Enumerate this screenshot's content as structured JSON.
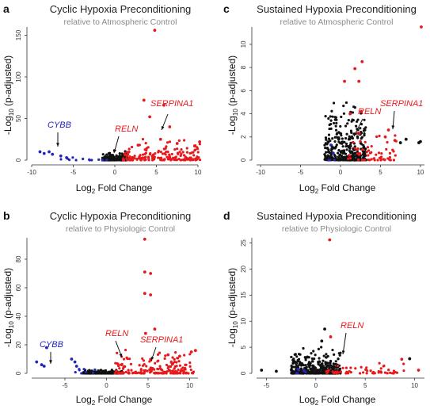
{
  "colors": {
    "up": "#e8191c",
    "down": "#2326b8",
    "ns": "#111111"
  },
  "chart_data": [
    {
      "panel": "a",
      "type": "scatter",
      "title": "Cyclic Hypoxia Preconditioning",
      "subtitle": "relative to Atmospheric Control",
      "xlabel": "Log2 Fold Change",
      "ylabel": "-Log10 (p-adjusted)",
      "xlim": [
        -10,
        10
      ],
      "ylim": [
        0,
        160
      ],
      "xticks": [
        -10,
        -5,
        0,
        5,
        10
      ],
      "yticks": [
        0,
        50,
        100,
        150
      ],
      "annotations": [
        {
          "text": "CYBB",
          "color": "down",
          "x": -7.8,
          "y": 7
        },
        {
          "text": "RELN",
          "color": "up",
          "x": 1.0,
          "y": 5
        },
        {
          "text": "SERPINA1",
          "color": "up",
          "x": 6.5,
          "y": 37
        }
      ],
      "highlight_points": [
        {
          "x": 4.8,
          "y": 156,
          "color": "up"
        },
        {
          "x": 3.5,
          "y": 72,
          "color": "up"
        },
        {
          "x": 5.9,
          "y": 66,
          "color": "up"
        },
        {
          "x": 4.2,
          "y": 52,
          "color": "up"
        },
        {
          "x": 6.6,
          "y": 40,
          "color": "up"
        },
        {
          "x": 10.2,
          "y": 22,
          "color": "up"
        },
        {
          "x": 9.6,
          "y": 17,
          "color": "up"
        },
        {
          "x": 2.8,
          "y": 18,
          "color": "up"
        },
        {
          "x": 5.5,
          "y": 25,
          "color": "up"
        },
        {
          "x": 7.5,
          "y": 20,
          "color": "up"
        },
        {
          "x": -7.9,
          "y": 10,
          "color": "down"
        },
        {
          "x": -7.5,
          "y": 7,
          "color": "down"
        },
        {
          "x": -9.0,
          "y": 10,
          "color": "down"
        },
        {
          "x": -8.5,
          "y": 8,
          "color": "down"
        },
        {
          "x": -6.5,
          "y": 5,
          "color": "down"
        },
        {
          "x": -5.8,
          "y": 3,
          "color": "down"
        }
      ],
      "cloud": {
        "ns_x": [
          -1.5,
          1.5
        ],
        "ns_ymax": 12,
        "up_x": [
          1.0,
          10.5
        ],
        "up_ymax": 30,
        "down_x": [
          -6.5,
          -0.8
        ],
        "down_ymax": 8,
        "n_ns": 220,
        "n_up": 170,
        "n_down": 12
      }
    },
    {
      "panel": "b",
      "type": "scatter",
      "title": "Cyclic Hypoxia Preconditioning",
      "subtitle": "relative to Physiologic Control",
      "xlabel": "Log2 Fold Change",
      "ylabel": "-Log10 (p-adjusted)",
      "xlim": [
        -9,
        11
      ],
      "ylim": [
        0,
        95
      ],
      "xticks": [
        -5,
        0,
        5,
        10
      ],
      "yticks": [
        0,
        20,
        40,
        60,
        80
      ],
      "annotations": [
        {
          "text": "CYBB",
          "color": "down",
          "x": -7.5,
          "y": 6
        },
        {
          "text": "RELN",
          "color": "up",
          "x": 1.6,
          "y": 6
        },
        {
          "text": "SERPINA1",
          "color": "up",
          "x": 5.6,
          "y": 8
        }
      ],
      "highlight_points": [
        {
          "x": 4.6,
          "y": 94,
          "color": "up"
        },
        {
          "x": 4.6,
          "y": 71,
          "color": "up"
        },
        {
          "x": 5.3,
          "y": 70,
          "color": "up"
        },
        {
          "x": 4.6,
          "y": 56,
          "color": "up"
        },
        {
          "x": 5.3,
          "y": 55,
          "color": "up"
        },
        {
          "x": 5.8,
          "y": 31,
          "color": "up"
        },
        {
          "x": 4.7,
          "y": 28,
          "color": "up"
        },
        {
          "x": 10.7,
          "y": 16,
          "color": "up"
        },
        {
          "x": 10.2,
          "y": 15,
          "color": "up"
        },
        {
          "x": 8.8,
          "y": 12,
          "color": "up"
        },
        {
          "x": 7.4,
          "y": 13,
          "color": "up"
        },
        {
          "x": -8.4,
          "y": 8,
          "color": "down"
        },
        {
          "x": -7.2,
          "y": 18,
          "color": "down"
        },
        {
          "x": -4.2,
          "y": 10,
          "color": "down"
        },
        {
          "x": -3.8,
          "y": 8,
          "color": "down"
        },
        {
          "x": -7.5,
          "y": 5,
          "color": "down"
        },
        {
          "x": -7.8,
          "y": 6,
          "color": "down"
        },
        {
          "x": -3.6,
          "y": 5,
          "color": "down"
        }
      ],
      "cloud": {
        "ns_x": [
          -2.8,
          2.0
        ],
        "ns_ymax": 3,
        "up_x": [
          1.0,
          10.5
        ],
        "up_ymax": 18,
        "down_x": [
          -4.0,
          -1.0
        ],
        "down_ymax": 4,
        "n_ns": 200,
        "n_up": 180,
        "n_down": 8
      }
    },
    {
      "panel": "c",
      "type": "scatter",
      "title": "Sustained Hypoxia Preconditioning",
      "subtitle": "relative to Atmospheric Control",
      "xlabel": "Log2 Fold Change",
      "ylabel": "-Log10 (p-adjusted)",
      "xlim": [
        -10.5,
        10.5
      ],
      "ylim": [
        0,
        11.5
      ],
      "xticks": [
        -10,
        -5,
        0,
        5,
        10
      ],
      "yticks": [
        0,
        2,
        4,
        6,
        8,
        10
      ],
      "annotations": [
        {
          "text": "RELN",
          "color": "up",
          "x": 1.0,
          "y": 1.6
        },
        {
          "text": "SERPINA1",
          "color": "up",
          "x": 6.2,
          "y": 2.6
        }
      ],
      "highlight_points": [
        {
          "x": 10.1,
          "y": 11.5,
          "color": "up"
        },
        {
          "x": 2.7,
          "y": 8.5,
          "color": "up"
        },
        {
          "x": 1.8,
          "y": 7.9,
          "color": "up"
        },
        {
          "x": 2.3,
          "y": 6.8,
          "color": "up"
        },
        {
          "x": 0.5,
          "y": 6.8,
          "color": "up"
        },
        {
          "x": 1.2,
          "y": 4.0,
          "color": "up"
        },
        {
          "x": 2.6,
          "y": 4.2,
          "color": "up"
        },
        {
          "x": 6.0,
          "y": 2.6,
          "color": "up"
        },
        {
          "x": 5.6,
          "y": 2.0,
          "color": "up"
        },
        {
          "x": 6.8,
          "y": 1.7,
          "color": "up"
        },
        {
          "x": 9.8,
          "y": 1.5,
          "color": "ns"
        },
        {
          "x": 10.0,
          "y": 1.6,
          "color": "ns"
        },
        {
          "x": 8.2,
          "y": 1.8,
          "color": "ns"
        },
        {
          "x": 7.5,
          "y": 1.5,
          "color": "ns"
        },
        {
          "x": -1.2,
          "y": 1.3,
          "color": "down"
        },
        {
          "x": -0.9,
          "y": 0.6,
          "color": "down"
        }
      ],
      "cloud": {
        "ns_x": [
          -2.0,
          3.2
        ],
        "ns_ymax": 5.5,
        "up_x": [
          0.8,
          7.0
        ],
        "up_ymax": 3.5,
        "down_x": [
          -1.5,
          -0.6
        ],
        "down_ymax": 1.2,
        "n_ns": 380,
        "n_up": 60,
        "n_down": 3
      }
    },
    {
      "panel": "d",
      "type": "scatter",
      "title": "Sustained Hypoxia Preconditioning",
      "subtitle": "relative to Physiologic Control",
      "xlabel": "Log2 Fold Change",
      "ylabel": "-Log10 (p-adjusted)",
      "xlim": [
        -6,
        11
      ],
      "ylim": [
        0,
        26
      ],
      "xticks": [
        -5,
        0,
        5,
        10
      ],
      "yticks": [
        0,
        5,
        10,
        15,
        20,
        25
      ],
      "annotations": [
        {
          "text": "RELN",
          "color": "up",
          "x": 2.7,
          "y": 3.5
        }
      ],
      "highlight_points": [
        {
          "x": 1.4,
          "y": 25.6,
          "color": "up"
        },
        {
          "x": 0.9,
          "y": 8.5,
          "color": "ns"
        },
        {
          "x": 1.5,
          "y": 7.0,
          "color": "up"
        },
        {
          "x": 0.6,
          "y": 6.2,
          "color": "ns"
        },
        {
          "x": 9.5,
          "y": 2.8,
          "color": "ns"
        },
        {
          "x": 8.7,
          "y": 2.7,
          "color": "up"
        },
        {
          "x": 10.4,
          "y": 0.6,
          "color": "up"
        },
        {
          "x": -5.5,
          "y": 0.6,
          "color": "ns"
        },
        {
          "x": -4.0,
          "y": 0.4,
          "color": "ns"
        },
        {
          "x": -1.8,
          "y": 0.8,
          "color": "down"
        },
        {
          "x": -1.2,
          "y": 0.5,
          "color": "down"
        }
      ],
      "cloud": {
        "ns_x": [
          -2.5,
          2.5
        ],
        "ns_ymax": 5.5,
        "up_x": [
          1.0,
          9.0
        ],
        "up_ymax": 3.0,
        "down_x": [
          -2.0,
          -1.0
        ],
        "down_ymax": 1.0,
        "n_ns": 420,
        "n_up": 55,
        "n_down": 3
      }
    }
  ]
}
